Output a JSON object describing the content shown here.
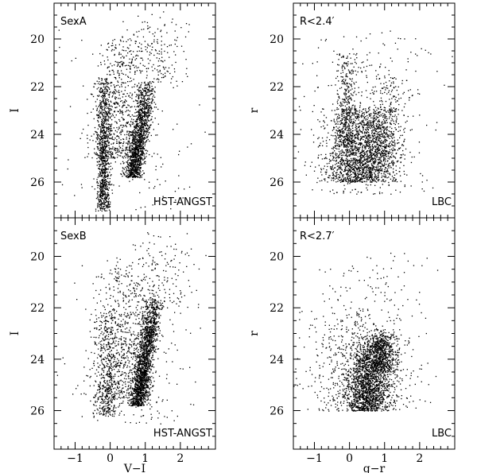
{
  "chart_data": [
    {
      "type": "scatter",
      "panel": "top-left",
      "label": "SexA",
      "corner_label": "HST-ANGST",
      "xlabel": "",
      "ylabel": "I",
      "xlim": [
        -1.6,
        3.0
      ],
      "ylim": [
        27.5,
        18.5
      ],
      "xticks": [],
      "yticks": [
        20,
        22,
        24,
        26
      ],
      "n_points": 3200,
      "components": [
        {
          "name_hint": "blue plume",
          "x_mean": -0.2,
          "x_sd": 0.1,
          "y_min": 21.6,
          "y_max": 27.2,
          "x_slope": 0.0,
          "weight": 0.3
        },
        {
          "name_hint": "red giant branch",
          "x_mean": 0.85,
          "x_sd": 0.13,
          "y_min": 21.8,
          "y_max": 25.8,
          "x_slope": -0.18,
          "weight": 0.42
        },
        {
          "name_hint": "helium burning",
          "x_mean": 0.2,
          "x_sd": 0.35,
          "y_min": 19.8,
          "y_max": 25.0,
          "x_slope": -0.05,
          "weight": 0.18
        },
        {
          "name_hint": "bright",
          "x_mean": 1.3,
          "x_sd": 0.4,
          "y_min": 18.8,
          "y_max": 22.0,
          "x_slope": -0.1,
          "weight": 0.05
        },
        {
          "name_hint": "field",
          "x_mean": 0.6,
          "x_sd": 0.9,
          "y_min": 19.0,
          "y_max": 27.2,
          "x_slope": 0.0,
          "weight": 0.05
        }
      ]
    },
    {
      "type": "scatter",
      "panel": "top-right",
      "label": "R<2.4′",
      "corner_label": "LBC",
      "xlabel": "",
      "ylabel": "r",
      "xlim": [
        -1.6,
        3.0
      ],
      "ylim": [
        27.5,
        18.5
      ],
      "xticks": [],
      "yticks": [
        20,
        22,
        24,
        26
      ],
      "n_points": 2800,
      "components": [
        {
          "name_hint": "main cloud",
          "x_mean": 0.3,
          "x_sd": 0.5,
          "y_min": 22.8,
          "y_max": 26.0,
          "x_slope": 0.0,
          "weight": 0.6
        },
        {
          "name_hint": "blue",
          "x_mean": -0.1,
          "x_sd": 0.15,
          "y_min": 20.5,
          "y_max": 24.5,
          "x_slope": 0.0,
          "weight": 0.12
        },
        {
          "name_hint": "red",
          "x_mean": 1.0,
          "x_sd": 0.25,
          "y_min": 21.5,
          "y_max": 25.5,
          "x_slope": -0.15,
          "weight": 0.13
        },
        {
          "name_hint": "field",
          "x_mean": 0.5,
          "x_sd": 0.8,
          "y_min": 19.5,
          "y_max": 26.5,
          "x_slope": 0.0,
          "weight": 0.15
        }
      ]
    },
    {
      "type": "scatter",
      "panel": "bottom-left",
      "label": "SexB",
      "corner_label": "HST-ANGST",
      "xlabel": "V−I",
      "ylabel": "I",
      "xlim": [
        -1.6,
        3.0
      ],
      "ylim": [
        27.5,
        18.5
      ],
      "xticks": [
        -1,
        0,
        1,
        2
      ],
      "yticks": [
        20,
        22,
        24,
        26
      ],
      "n_points": 3200,
      "components": [
        {
          "name_hint": "red giant branch",
          "x_mean": 1.0,
          "x_sd": 0.13,
          "y_min": 21.6,
          "y_max": 25.8,
          "x_slope": -0.2,
          "weight": 0.55
        },
        {
          "name_hint": "blue plume",
          "x_mean": -0.1,
          "x_sd": 0.2,
          "y_min": 22.0,
          "y_max": 26.2,
          "x_slope": 0.0,
          "weight": 0.15
        },
        {
          "name_hint": "helium burning",
          "x_mean": 0.35,
          "x_sd": 0.4,
          "y_min": 20.0,
          "y_max": 25.5,
          "x_slope": -0.05,
          "weight": 0.15
        },
        {
          "name_hint": "bright",
          "x_mean": 1.5,
          "x_sd": 0.5,
          "y_min": 19.0,
          "y_max": 22.0,
          "x_slope": 0.0,
          "weight": 0.05
        },
        {
          "name_hint": "field",
          "x_mean": 0.6,
          "x_sd": 0.8,
          "y_min": 20.0,
          "y_max": 26.5,
          "x_slope": 0.0,
          "weight": 0.1
        }
      ]
    },
    {
      "type": "scatter",
      "panel": "bottom-right",
      "label": "R<2.7′",
      "corner_label": "LBC",
      "xlabel": "g−r",
      "ylabel": "r",
      "xlim": [
        -1.6,
        3.0
      ],
      "ylim": [
        27.5,
        18.5
      ],
      "xticks": [
        -1,
        0,
        1,
        2
      ],
      "yticks": [
        20,
        22,
        24,
        26
      ],
      "n_points": 2900,
      "components": [
        {
          "name_hint": "main cloud",
          "x_mean": 0.6,
          "x_sd": 0.3,
          "y_min": 23.0,
          "y_max": 26.0,
          "x_slope": -0.15,
          "weight": 0.55
        },
        {
          "name_hint": "red",
          "x_mean": 0.9,
          "x_sd": 0.2,
          "y_min": 22.8,
          "y_max": 24.5,
          "x_slope": 0.0,
          "weight": 0.15
        },
        {
          "name_hint": "broad",
          "x_mean": 0.3,
          "x_sd": 0.7,
          "y_min": 22.0,
          "y_max": 26.0,
          "x_slope": 0.0,
          "weight": 0.2
        },
        {
          "name_hint": "field",
          "x_mean": 0.5,
          "x_sd": 0.8,
          "y_min": 19.8,
          "y_max": 26.0,
          "x_slope": 0.0,
          "weight": 0.1
        }
      ]
    }
  ]
}
